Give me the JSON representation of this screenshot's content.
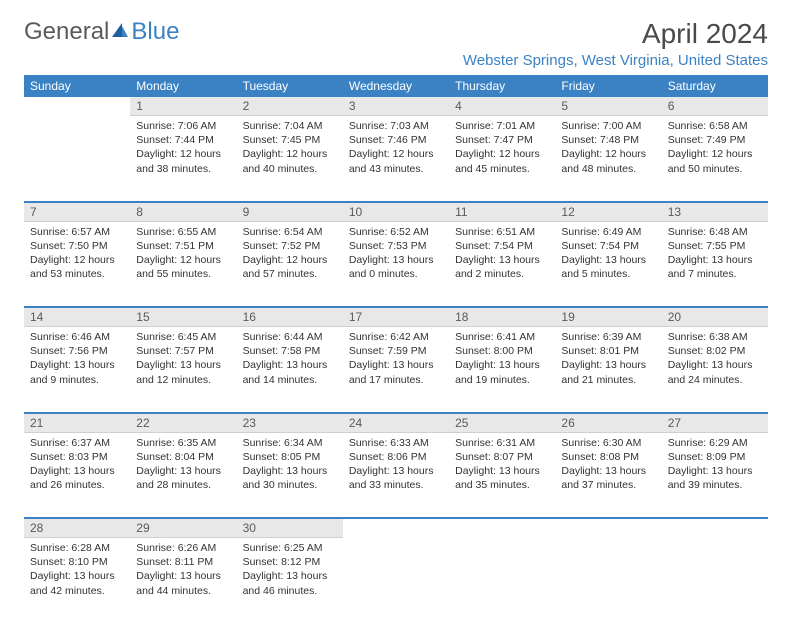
{
  "brand": {
    "general": "General",
    "blue": "Blue"
  },
  "title": "April 2024",
  "location": "Webster Springs, West Virginia, United States",
  "colors": {
    "accent": "#3b82c4",
    "header_bg": "#3b82c4",
    "header_fg": "#ffffff",
    "daynum_bg": "#e8e8e8",
    "daynum_fg": "#5a5a5a",
    "text": "#333333",
    "logo_gray": "#5a5a5a"
  },
  "weekdays": [
    "Sunday",
    "Monday",
    "Tuesday",
    "Wednesday",
    "Thursday",
    "Friday",
    "Saturday"
  ],
  "weeks": [
    [
      null,
      {
        "n": "1",
        "sr": "Sunrise: 7:06 AM",
        "ss": "Sunset: 7:44 PM",
        "d1": "Daylight: 12 hours",
        "d2": "and 38 minutes."
      },
      {
        "n": "2",
        "sr": "Sunrise: 7:04 AM",
        "ss": "Sunset: 7:45 PM",
        "d1": "Daylight: 12 hours",
        "d2": "and 40 minutes."
      },
      {
        "n": "3",
        "sr": "Sunrise: 7:03 AM",
        "ss": "Sunset: 7:46 PM",
        "d1": "Daylight: 12 hours",
        "d2": "and 43 minutes."
      },
      {
        "n": "4",
        "sr": "Sunrise: 7:01 AM",
        "ss": "Sunset: 7:47 PM",
        "d1": "Daylight: 12 hours",
        "d2": "and 45 minutes."
      },
      {
        "n": "5",
        "sr": "Sunrise: 7:00 AM",
        "ss": "Sunset: 7:48 PM",
        "d1": "Daylight: 12 hours",
        "d2": "and 48 minutes."
      },
      {
        "n": "6",
        "sr": "Sunrise: 6:58 AM",
        "ss": "Sunset: 7:49 PM",
        "d1": "Daylight: 12 hours",
        "d2": "and 50 minutes."
      }
    ],
    [
      {
        "n": "7",
        "sr": "Sunrise: 6:57 AM",
        "ss": "Sunset: 7:50 PM",
        "d1": "Daylight: 12 hours",
        "d2": "and 53 minutes."
      },
      {
        "n": "8",
        "sr": "Sunrise: 6:55 AM",
        "ss": "Sunset: 7:51 PM",
        "d1": "Daylight: 12 hours",
        "d2": "and 55 minutes."
      },
      {
        "n": "9",
        "sr": "Sunrise: 6:54 AM",
        "ss": "Sunset: 7:52 PM",
        "d1": "Daylight: 12 hours",
        "d2": "and 57 minutes."
      },
      {
        "n": "10",
        "sr": "Sunrise: 6:52 AM",
        "ss": "Sunset: 7:53 PM",
        "d1": "Daylight: 13 hours",
        "d2": "and 0 minutes."
      },
      {
        "n": "11",
        "sr": "Sunrise: 6:51 AM",
        "ss": "Sunset: 7:54 PM",
        "d1": "Daylight: 13 hours",
        "d2": "and 2 minutes."
      },
      {
        "n": "12",
        "sr": "Sunrise: 6:49 AM",
        "ss": "Sunset: 7:54 PM",
        "d1": "Daylight: 13 hours",
        "d2": "and 5 minutes."
      },
      {
        "n": "13",
        "sr": "Sunrise: 6:48 AM",
        "ss": "Sunset: 7:55 PM",
        "d1": "Daylight: 13 hours",
        "d2": "and 7 minutes."
      }
    ],
    [
      {
        "n": "14",
        "sr": "Sunrise: 6:46 AM",
        "ss": "Sunset: 7:56 PM",
        "d1": "Daylight: 13 hours",
        "d2": "and 9 minutes."
      },
      {
        "n": "15",
        "sr": "Sunrise: 6:45 AM",
        "ss": "Sunset: 7:57 PM",
        "d1": "Daylight: 13 hours",
        "d2": "and 12 minutes."
      },
      {
        "n": "16",
        "sr": "Sunrise: 6:44 AM",
        "ss": "Sunset: 7:58 PM",
        "d1": "Daylight: 13 hours",
        "d2": "and 14 minutes."
      },
      {
        "n": "17",
        "sr": "Sunrise: 6:42 AM",
        "ss": "Sunset: 7:59 PM",
        "d1": "Daylight: 13 hours",
        "d2": "and 17 minutes."
      },
      {
        "n": "18",
        "sr": "Sunrise: 6:41 AM",
        "ss": "Sunset: 8:00 PM",
        "d1": "Daylight: 13 hours",
        "d2": "and 19 minutes."
      },
      {
        "n": "19",
        "sr": "Sunrise: 6:39 AM",
        "ss": "Sunset: 8:01 PM",
        "d1": "Daylight: 13 hours",
        "d2": "and 21 minutes."
      },
      {
        "n": "20",
        "sr": "Sunrise: 6:38 AM",
        "ss": "Sunset: 8:02 PM",
        "d1": "Daylight: 13 hours",
        "d2": "and 24 minutes."
      }
    ],
    [
      {
        "n": "21",
        "sr": "Sunrise: 6:37 AM",
        "ss": "Sunset: 8:03 PM",
        "d1": "Daylight: 13 hours",
        "d2": "and 26 minutes."
      },
      {
        "n": "22",
        "sr": "Sunrise: 6:35 AM",
        "ss": "Sunset: 8:04 PM",
        "d1": "Daylight: 13 hours",
        "d2": "and 28 minutes."
      },
      {
        "n": "23",
        "sr": "Sunrise: 6:34 AM",
        "ss": "Sunset: 8:05 PM",
        "d1": "Daylight: 13 hours",
        "d2": "and 30 minutes."
      },
      {
        "n": "24",
        "sr": "Sunrise: 6:33 AM",
        "ss": "Sunset: 8:06 PM",
        "d1": "Daylight: 13 hours",
        "d2": "and 33 minutes."
      },
      {
        "n": "25",
        "sr": "Sunrise: 6:31 AM",
        "ss": "Sunset: 8:07 PM",
        "d1": "Daylight: 13 hours",
        "d2": "and 35 minutes."
      },
      {
        "n": "26",
        "sr": "Sunrise: 6:30 AM",
        "ss": "Sunset: 8:08 PM",
        "d1": "Daylight: 13 hours",
        "d2": "and 37 minutes."
      },
      {
        "n": "27",
        "sr": "Sunrise: 6:29 AM",
        "ss": "Sunset: 8:09 PM",
        "d1": "Daylight: 13 hours",
        "d2": "and 39 minutes."
      }
    ],
    [
      {
        "n": "28",
        "sr": "Sunrise: 6:28 AM",
        "ss": "Sunset: 8:10 PM",
        "d1": "Daylight: 13 hours",
        "d2": "and 42 minutes."
      },
      {
        "n": "29",
        "sr": "Sunrise: 6:26 AM",
        "ss": "Sunset: 8:11 PM",
        "d1": "Daylight: 13 hours",
        "d2": "and 44 minutes."
      },
      {
        "n": "30",
        "sr": "Sunrise: 6:25 AM",
        "ss": "Sunset: 8:12 PM",
        "d1": "Daylight: 13 hours",
        "d2": "and 46 minutes."
      },
      null,
      null,
      null,
      null
    ]
  ]
}
